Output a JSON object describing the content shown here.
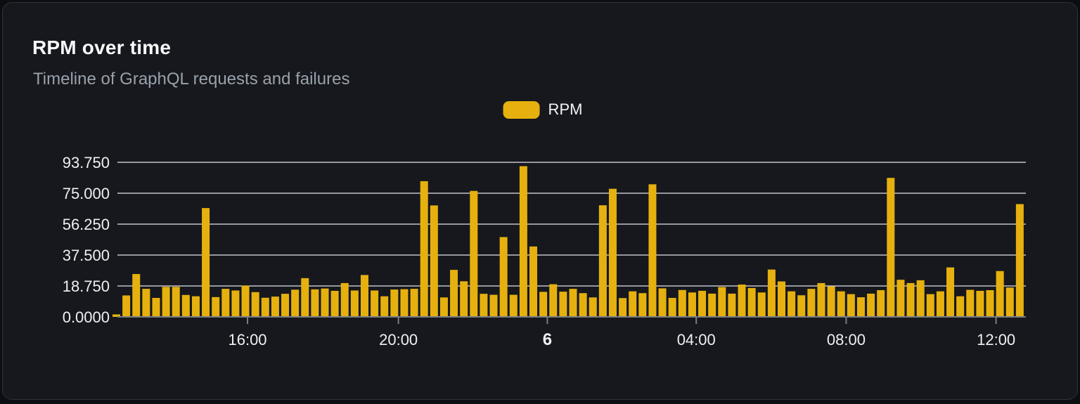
{
  "card": {
    "title": "RPM over time",
    "subtitle": "Timeline of GraphQL requests and failures"
  },
  "legend": {
    "label": "RPM",
    "swatch_color": "#e6b10e"
  },
  "colors": {
    "page_bg": "#0c0e12",
    "card_bg": "#16181d",
    "card_border": "#2e323a",
    "bar": "#e6b10e",
    "gridline": "#e2e5ee",
    "axis_line": "#797d84",
    "tick_label": "#eef0f3",
    "title": "#f7f8f9",
    "subtitle": "#9aa1ab"
  },
  "chart_data": {
    "type": "bar",
    "title": "RPM over time",
    "subtitle": "Timeline of GraphQL requests and failures",
    "series_name": "RPM",
    "legend_position": "top-center",
    "grid": true,
    "ylim": [
      0,
      93.75
    ],
    "y_ticks": [
      {
        "label": "93.750",
        "value": 93.75
      },
      {
        "label": "75.000",
        "value": 75.0
      },
      {
        "label": "56.250",
        "value": 56.25
      },
      {
        "label": "37.500",
        "value": 37.5
      },
      {
        "label": "18.750",
        "value": 18.75
      },
      {
        "label": "0.0000",
        "value": 0.0
      }
    ],
    "x_ticks": [
      {
        "label": "16:00",
        "index": 13.6,
        "emphasis": false
      },
      {
        "label": "20:00",
        "index": 28.8,
        "emphasis": false
      },
      {
        "label": "6",
        "index": 43.8,
        "emphasis": true
      },
      {
        "label": "04:00",
        "index": 58.8,
        "emphasis": false
      },
      {
        "label": "08:00",
        "index": 73.9,
        "emphasis": false
      },
      {
        "label": "12:00",
        "index": 89.0,
        "emphasis": false
      }
    ],
    "values": [
      1.5,
      13,
      26,
      17,
      11.5,
      18.2,
      18.2,
      13.3,
      12.5,
      66,
      12,
      17,
      16,
      19,
      15,
      11.6,
      12.3,
      14,
      16.5,
      23.5,
      16.7,
      17.2,
      15.8,
      20.5,
      16,
      25.4,
      16,
      12.5,
      16.6,
      16.8,
      17,
      82.3,
      67.6,
      11.8,
      28.5,
      21.6,
      76.4,
      14,
      13.4,
      48.4,
      13.4,
      91.4,
      42.7,
      15.2,
      19.8,
      15.3,
      17,
      14.4,
      11.8,
      67.7,
      77.7,
      11.4,
      15.5,
      14.4,
      80.4,
      17.3,
      11.5,
      16.3,
      14.8,
      15.8,
      14.1,
      18.1,
      14.1,
      19.6,
      17.5,
      14.8,
      28.7,
      21.5,
      15.5,
      13.1,
      17,
      20.5,
      18.5,
      15.5,
      13.8,
      11.9,
      14.1,
      16.2,
      84.3,
      22.5,
      20.5,
      22.2,
      13.8,
      15.5,
      30,
      12.5,
      16.4,
      15.8,
      16.2,
      27.8,
      17.8,
      68.4
    ]
  }
}
